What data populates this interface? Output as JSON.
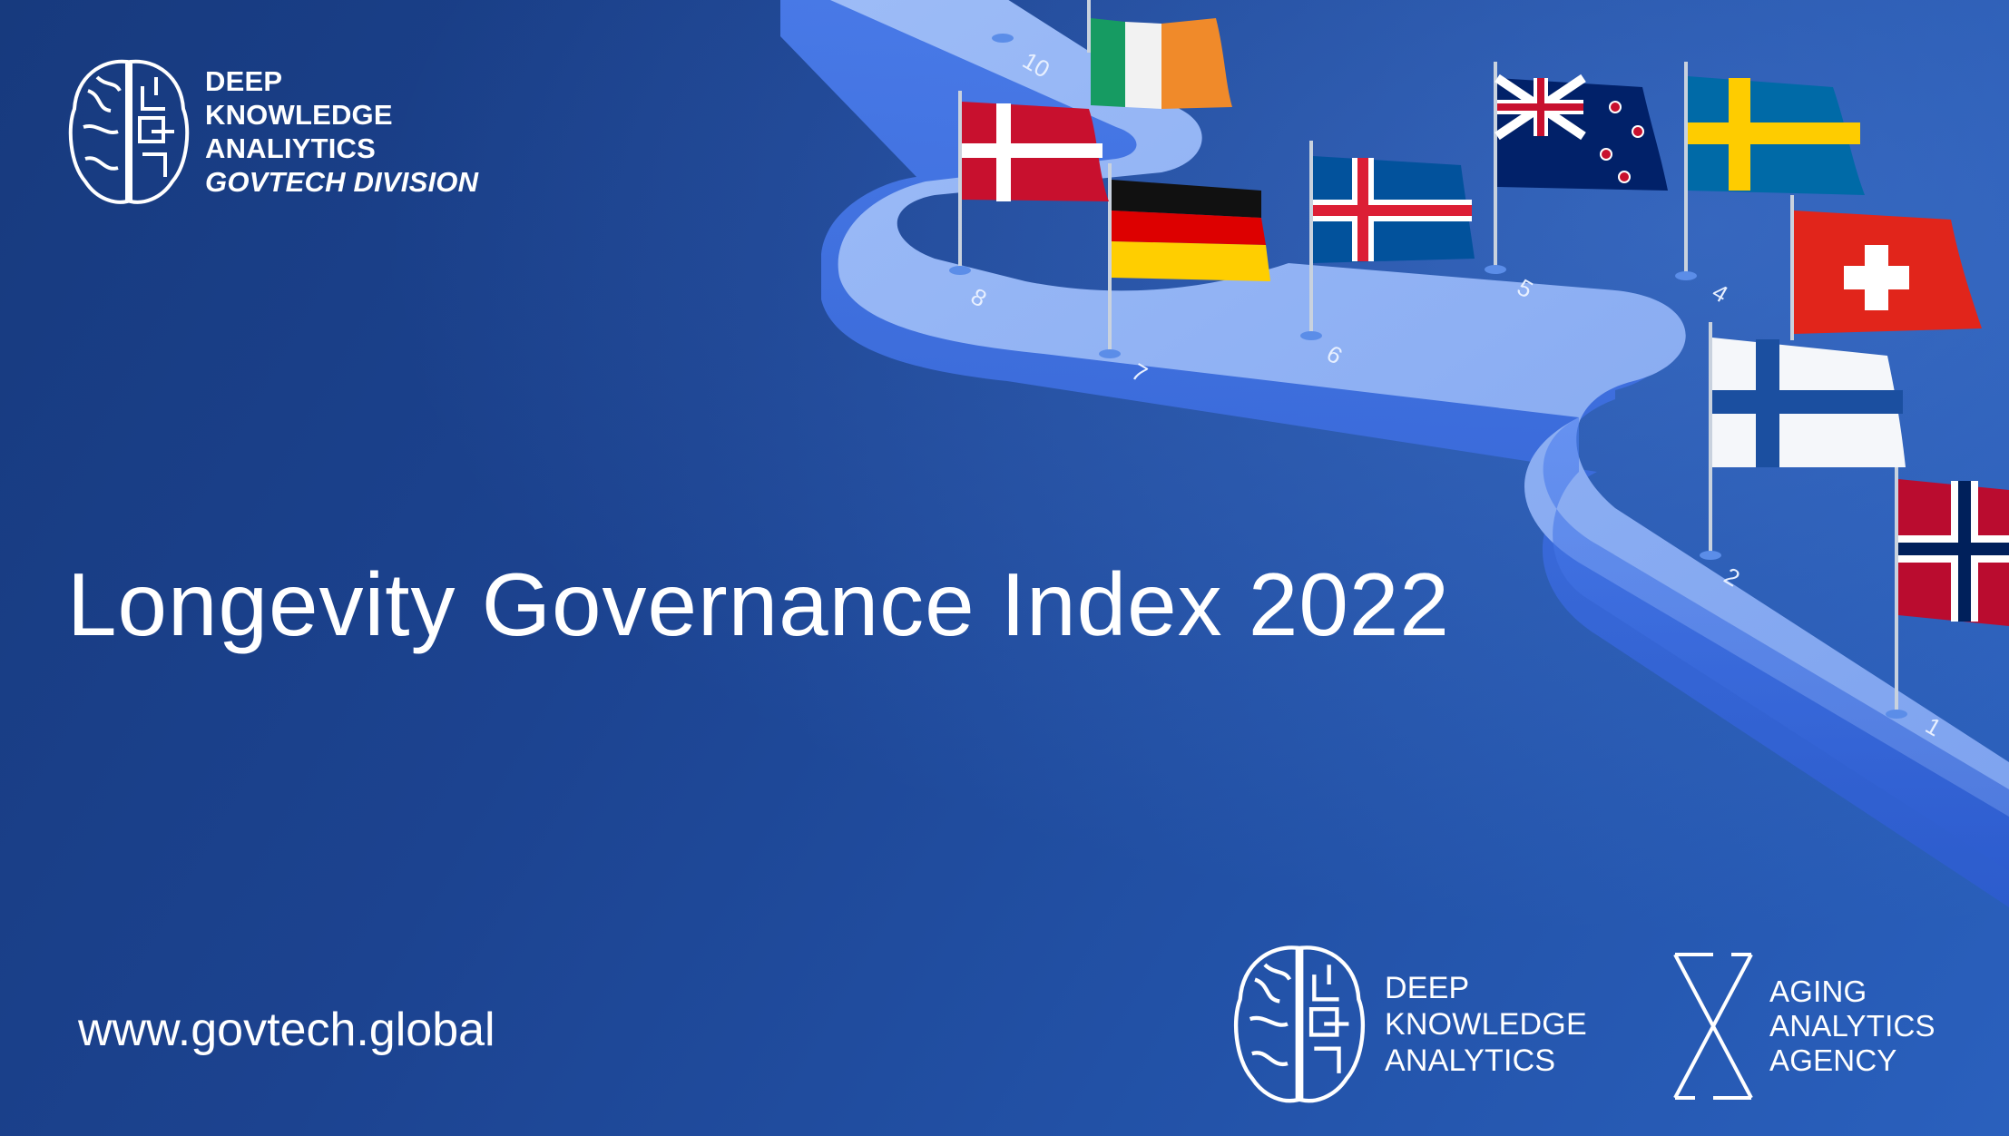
{
  "header_logo": {
    "lines": [
      "DEEP",
      "KNOWLEDGE",
      "ANALIYTICS"
    ],
    "division": "GOVTECH DIVISION",
    "icon": "brain-circuit-icon"
  },
  "title": "Longevity Governance Index 2022",
  "url": "www.govtech.global",
  "footer_logos": [
    {
      "lines": [
        "DEEP",
        "KNOWLEDGE",
        "ANALYTICS"
      ],
      "icon": "brain-circuit-icon"
    },
    {
      "lines": [
        "AGING",
        "ANALYTICS",
        "AGENCY"
      ],
      "icon": "hourglass-icon"
    }
  ],
  "road_labels": [
    "10",
    "8",
    "7",
    "6",
    "5",
    "4",
    "2",
    "1"
  ],
  "flags": [
    "ireland",
    "denmark",
    "germany",
    "iceland",
    "new-zealand",
    "sweden",
    "switzerland",
    "finland",
    "norway"
  ],
  "colors": {
    "background": "#1c4390",
    "road_top": "#8fb2f5",
    "road_side": "#3d6fe0"
  }
}
